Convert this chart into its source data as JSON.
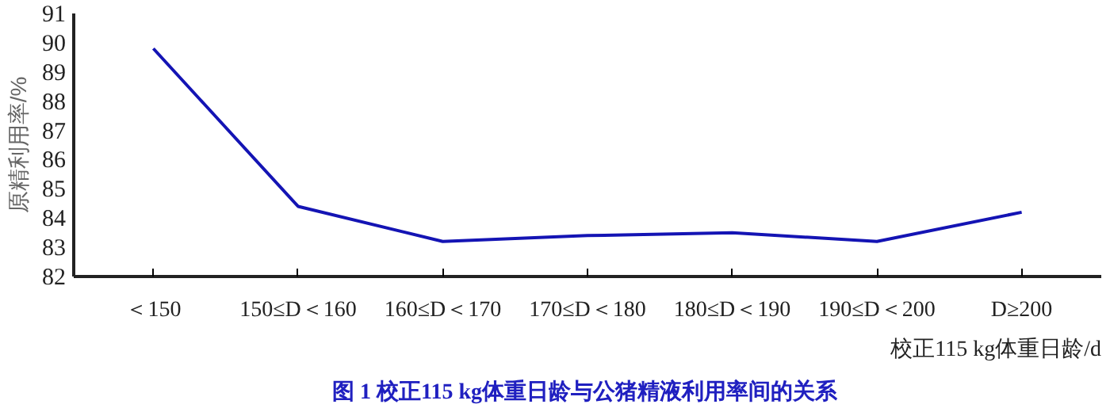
{
  "chart_data": {
    "type": "line",
    "title": "图 1  校正115 kg体重日龄与公猪精液利用率间的关系",
    "xlabel": "校正115 kg体重日龄/d",
    "ylabel": "原精利用率/%",
    "categories": [
      "＜150",
      "150≤D＜160",
      "160≤D＜170",
      "170≤D＜180",
      "180≤D＜190",
      "190≤D＜200",
      "D≥200"
    ],
    "series": [
      {
        "color": "#1414b4",
        "values": [
          89.8,
          84.4,
          83.2,
          83.4,
          83.5,
          83.2,
          84.2
        ]
      }
    ],
    "ylim": [
      82,
      91
    ],
    "yticks": [
      82,
      83,
      84,
      85,
      86,
      87,
      88,
      89,
      90,
      91
    ],
    "grid": false,
    "marker": "none",
    "line_style": "solid"
  }
}
